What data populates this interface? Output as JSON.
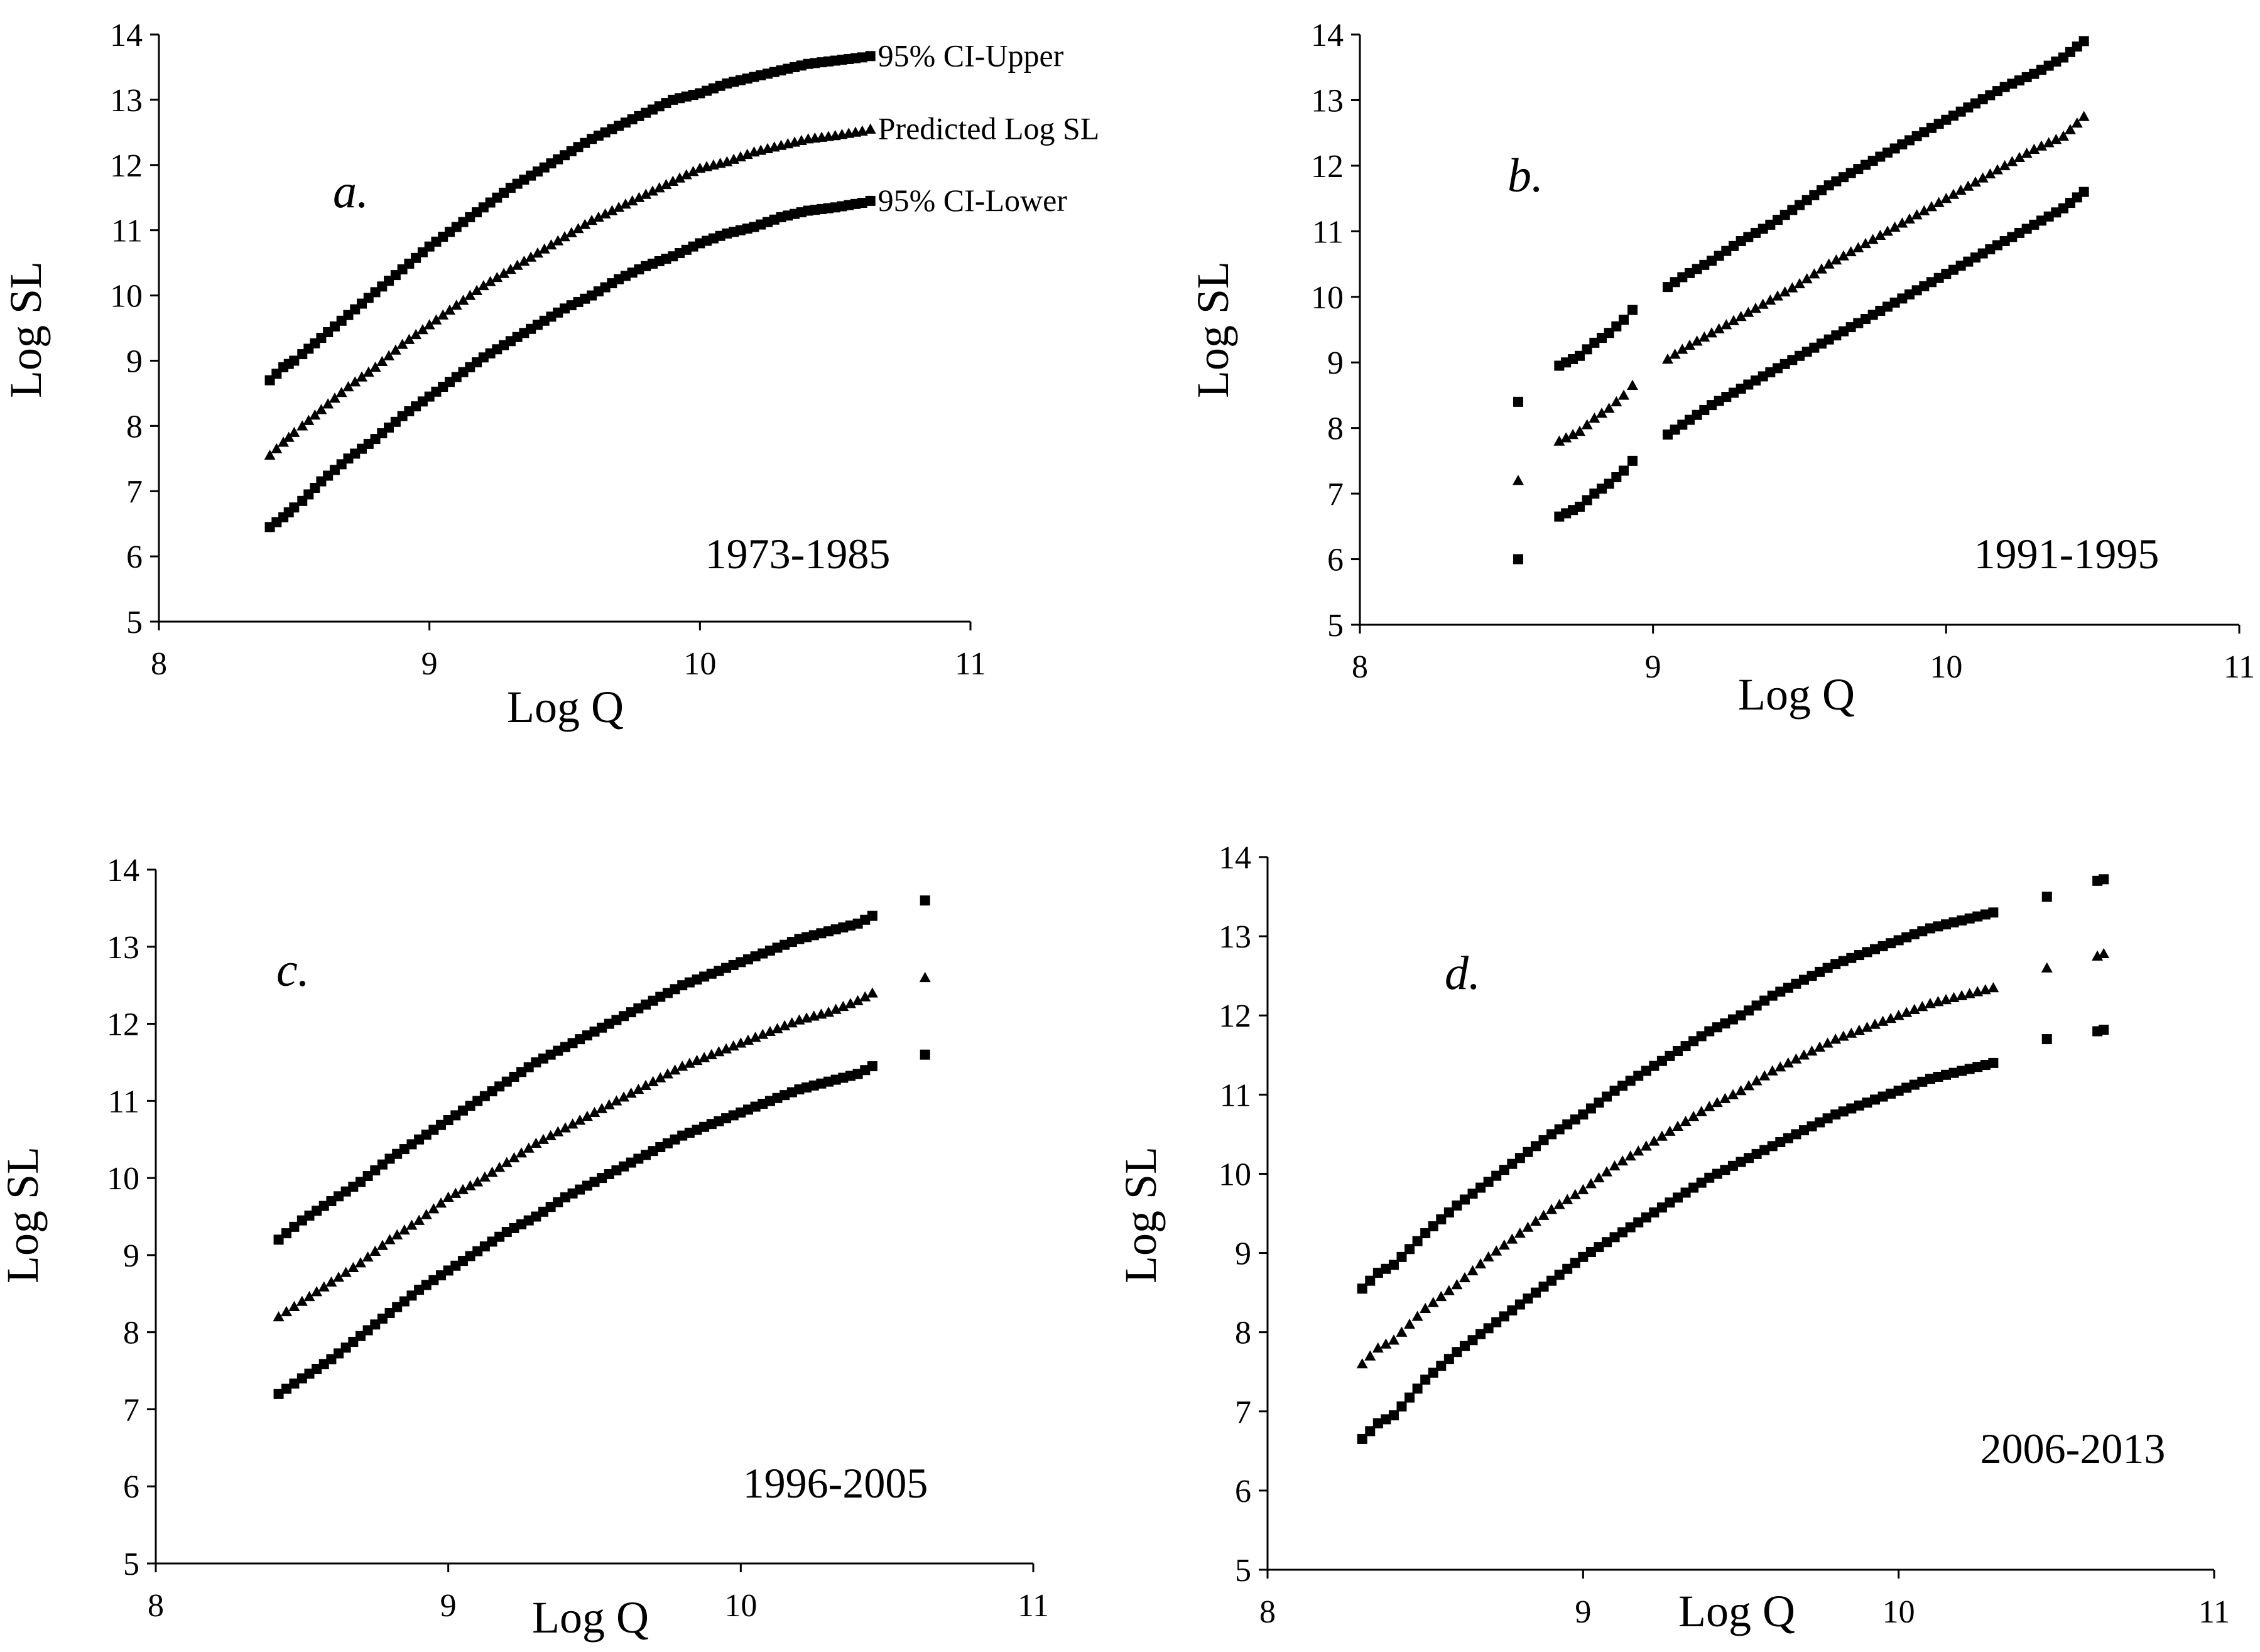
{
  "figure": {
    "background": "#ffffff",
    "marker_color": "#000000"
  },
  "chart_data": [
    {
      "type": "scatter",
      "panel": "a.",
      "period": "1973-1985",
      "xlabel": "Log Q",
      "ylabel": "Log SL",
      "xlim": [
        8,
        11
      ],
      "ylim": [
        5,
        14
      ],
      "xticks": [
        8,
        9,
        10,
        11
      ],
      "yticks": [
        5,
        6,
        7,
        8,
        9,
        10,
        11,
        12,
        13,
        14
      ],
      "legend": [
        {
          "series": "95% CI-Upper",
          "label": "95% CI-Upper"
        },
        {
          "series": "Predicted Log SL",
          "label": "Predicted Log SL"
        },
        {
          "series": "95% CI-Lower",
          "label": "95% CI-Lower"
        }
      ],
      "series": [
        {
          "name": "95% CI-Upper",
          "marker": "square",
          "x": [
            8.41,
            8.46,
            8.5,
            8.53,
            8.6,
            8.7,
            8.8,
            8.9,
            9.0,
            9.1,
            9.2,
            9.3,
            9.4,
            9.5,
            9.6,
            9.7,
            9.8,
            9.9,
            10.0,
            10.1,
            10.2,
            10.3,
            10.4,
            10.5,
            10.6,
            10.63
          ],
          "y": [
            8.7,
            8.9,
            9.0,
            9.1,
            9.35,
            9.7,
            10.05,
            10.4,
            10.75,
            11.05,
            11.35,
            11.65,
            11.9,
            12.15,
            12.4,
            12.6,
            12.8,
            13.0,
            13.1,
            13.25,
            13.35,
            13.45,
            13.55,
            13.6,
            13.65,
            13.67
          ]
        },
        {
          "name": "Predicted Log SL",
          "marker": "triangle",
          "x": [
            8.41,
            8.46,
            8.5,
            8.53,
            8.6,
            8.7,
            8.8,
            8.9,
            9.0,
            9.1,
            9.2,
            9.3,
            9.4,
            9.5,
            9.6,
            9.7,
            9.8,
            9.9,
            10.0,
            10.1,
            10.2,
            10.3,
            10.4,
            10.5,
            10.6,
            10.63
          ],
          "y": [
            7.55,
            7.75,
            7.9,
            8.0,
            8.25,
            8.6,
            8.9,
            9.25,
            9.55,
            9.85,
            10.15,
            10.4,
            10.65,
            10.9,
            11.15,
            11.35,
            11.55,
            11.75,
            11.95,
            12.05,
            12.2,
            12.3,
            12.4,
            12.45,
            12.52,
            12.55
          ]
        },
        {
          "name": "95% CI-Lower",
          "marker": "square",
          "x": [
            8.41,
            8.46,
            8.5,
            8.53,
            8.6,
            8.7,
            8.8,
            8.9,
            9.0,
            9.1,
            9.2,
            9.3,
            9.4,
            9.5,
            9.6,
            9.7,
            9.8,
            9.9,
            10.0,
            10.1,
            10.2,
            10.3,
            10.4,
            10.5,
            10.6,
            10.63
          ],
          "y": [
            6.45,
            6.6,
            6.75,
            6.85,
            7.15,
            7.5,
            7.8,
            8.15,
            8.45,
            8.75,
            9.05,
            9.3,
            9.55,
            9.8,
            10.0,
            10.25,
            10.45,
            10.6,
            10.8,
            10.95,
            11.05,
            11.2,
            11.3,
            11.35,
            11.42,
            11.45
          ]
        }
      ]
    },
    {
      "type": "scatter",
      "panel": "b.",
      "period": "1991-1995",
      "xlabel": "Log Q",
      "ylabel": "Log SL",
      "xlim": [
        8,
        11
      ],
      "ylim": [
        5,
        14
      ],
      "xticks": [
        8,
        9,
        10,
        11
      ],
      "yticks": [
        5,
        6,
        7,
        8,
        9,
        10,
        11,
        12,
        13,
        14
      ],
      "series": [
        {
          "name": "95% CI-Upper",
          "marker": "square",
          "x": [
            8.54,
            8.68,
            8.75,
            8.8,
            8.85,
            8.9,
            8.93,
            9.05,
            9.1,
            9.2,
            9.3,
            9.4,
            9.5,
            9.6,
            9.7,
            9.8,
            9.9,
            10.0,
            10.1,
            10.2,
            10.3,
            10.4,
            10.47
          ],
          "y": [
            8.4,
            8.95,
            9.1,
            9.3,
            9.45,
            9.65,
            9.8,
            10.15,
            10.3,
            10.55,
            10.85,
            11.1,
            11.4,
            11.7,
            11.95,
            12.2,
            12.45,
            12.7,
            12.95,
            13.2,
            13.4,
            13.65,
            13.9
          ]
        },
        {
          "name": "Predicted Log SL",
          "marker": "triangle",
          "x": [
            8.54,
            8.68,
            8.75,
            8.8,
            8.85,
            8.9,
            8.93,
            9.05,
            9.1,
            9.2,
            9.3,
            9.4,
            9.5,
            9.6,
            9.7,
            9.8,
            9.9,
            10.0,
            10.1,
            10.2,
            10.3,
            10.4,
            10.47
          ],
          "y": [
            7.2,
            7.8,
            7.95,
            8.15,
            8.3,
            8.5,
            8.65,
            9.05,
            9.2,
            9.45,
            9.7,
            9.95,
            10.2,
            10.5,
            10.75,
            11.0,
            11.25,
            11.5,
            11.75,
            12.0,
            12.25,
            12.45,
            12.75
          ]
        },
        {
          "name": "95% CI-Lower",
          "marker": "square",
          "x": [
            8.54,
            8.68,
            8.75,
            8.8,
            8.85,
            8.9,
            8.93,
            9.05,
            9.1,
            9.2,
            9.3,
            9.4,
            9.5,
            9.6,
            9.7,
            9.8,
            9.9,
            10.0,
            10.1,
            10.2,
            10.3,
            10.4,
            10.47
          ],
          "y": [
            6.0,
            6.65,
            6.8,
            7.0,
            7.15,
            7.35,
            7.5,
            7.9,
            8.05,
            8.35,
            8.6,
            8.85,
            9.1,
            9.35,
            9.6,
            9.85,
            10.1,
            10.35,
            10.6,
            10.85,
            11.1,
            11.35,
            11.6
          ]
        }
      ]
    },
    {
      "type": "scatter",
      "panel": "c.",
      "period": "1996-2005",
      "xlabel": "Log Q",
      "ylabel": "Log SL",
      "xlim": [
        8,
        11
      ],
      "ylim": [
        5,
        14
      ],
      "xticks": [
        8,
        9,
        10,
        11
      ],
      "yticks": [
        5,
        6,
        7,
        8,
        9,
        10,
        11,
        12,
        13,
        14
      ],
      "series": [
        {
          "name": "95% CI-Upper",
          "marker": "square",
          "x": [
            8.42,
            8.5,
            8.6,
            8.7,
            8.8,
            8.9,
            9.0,
            9.1,
            9.2,
            9.3,
            9.4,
            9.5,
            9.6,
            9.7,
            9.8,
            9.9,
            10.0,
            10.1,
            10.2,
            10.3,
            10.4,
            10.45,
            10.63
          ],
          "y": [
            9.2,
            9.45,
            9.7,
            9.95,
            10.25,
            10.5,
            10.75,
            11.0,
            11.25,
            11.5,
            11.7,
            11.9,
            12.1,
            12.3,
            12.5,
            12.65,
            12.8,
            12.95,
            13.1,
            13.2,
            13.3,
            13.4,
            13.6
          ]
        },
        {
          "name": "Predicted Log SL",
          "marker": "triangle",
          "x": [
            8.42,
            8.5,
            8.6,
            8.7,
            8.8,
            8.9,
            9.0,
            9.1,
            9.2,
            9.3,
            9.4,
            9.5,
            9.6,
            9.7,
            9.8,
            9.9,
            10.0,
            10.1,
            10.2,
            10.3,
            10.4,
            10.45,
            10.63
          ],
          "y": [
            8.2,
            8.4,
            8.65,
            8.9,
            9.2,
            9.45,
            9.75,
            9.95,
            10.2,
            10.45,
            10.65,
            10.85,
            11.05,
            11.25,
            11.45,
            11.6,
            11.75,
            11.9,
            12.05,
            12.15,
            12.3,
            12.4,
            12.6
          ]
        },
        {
          "name": "95% CI-Lower",
          "marker": "square",
          "x": [
            8.42,
            8.5,
            8.6,
            8.7,
            8.8,
            8.9,
            9.0,
            9.1,
            9.2,
            9.3,
            9.4,
            9.5,
            9.6,
            9.7,
            9.8,
            9.9,
            10.0,
            10.1,
            10.2,
            10.3,
            10.4,
            10.45,
            10.63
          ],
          "y": [
            7.2,
            7.4,
            7.65,
            7.95,
            8.25,
            8.55,
            8.8,
            9.05,
            9.3,
            9.5,
            9.75,
            9.95,
            10.15,
            10.35,
            10.55,
            10.7,
            10.85,
            11.0,
            11.15,
            11.25,
            11.35,
            11.45,
            11.6
          ]
        }
      ]
    },
    {
      "type": "scatter",
      "panel": "d.",
      "period": "2006-2013",
      "xlabel": "Log Q",
      "ylabel": "Log SL",
      "xlim": [
        8,
        11
      ],
      "ylim": [
        5,
        14
      ],
      "xticks": [
        8,
        9,
        10,
        11
      ],
      "yticks": [
        5,
        6,
        7,
        8,
        9,
        10,
        11,
        12,
        13,
        14
      ],
      "series": [
        {
          "name": "95% CI-Upper",
          "marker": "square",
          "x": [
            8.3,
            8.35,
            8.4,
            8.5,
            8.6,
            8.7,
            8.8,
            8.9,
            9.0,
            9.1,
            9.2,
            9.3,
            9.4,
            9.5,
            9.6,
            9.7,
            9.8,
            9.9,
            10.0,
            10.1,
            10.2,
            10.3,
            10.47,
            10.63,
            10.65
          ],
          "y": [
            8.55,
            8.75,
            8.85,
            9.25,
            9.6,
            9.9,
            10.2,
            10.5,
            10.75,
            11.05,
            11.3,
            11.55,
            11.8,
            12.0,
            12.25,
            12.45,
            12.65,
            12.8,
            12.95,
            13.1,
            13.2,
            13.3,
            13.5,
            13.7,
            13.72
          ]
        },
        {
          "name": "Predicted Log SL",
          "marker": "triangle",
          "x": [
            8.3,
            8.35,
            8.4,
            8.5,
            8.6,
            8.7,
            8.8,
            8.9,
            9.0,
            9.1,
            9.2,
            9.3,
            9.4,
            9.5,
            9.6,
            9.7,
            9.8,
            9.9,
            10.0,
            10.1,
            10.2,
            10.3,
            10.47,
            10.63,
            10.65
          ],
          "y": [
            7.6,
            7.8,
            7.9,
            8.3,
            8.6,
            8.95,
            9.25,
            9.55,
            9.8,
            10.1,
            10.35,
            10.6,
            10.85,
            11.05,
            11.3,
            11.5,
            11.7,
            11.85,
            12.0,
            12.15,
            12.25,
            12.35,
            12.6,
            12.75,
            12.78
          ]
        },
        {
          "name": "95% CI-Lower",
          "marker": "square",
          "x": [
            8.3,
            8.35,
            8.4,
            8.5,
            8.6,
            8.7,
            8.8,
            8.9,
            9.0,
            9.1,
            9.2,
            9.3,
            9.4,
            9.5,
            9.6,
            9.7,
            9.8,
            9.9,
            10.0,
            10.1,
            10.2,
            10.3,
            10.47,
            10.63,
            10.65
          ],
          "y": [
            6.65,
            6.85,
            6.95,
            7.4,
            7.75,
            8.05,
            8.35,
            8.65,
            8.95,
            9.2,
            9.45,
            9.7,
            9.95,
            10.15,
            10.35,
            10.55,
            10.75,
            10.9,
            11.05,
            11.2,
            11.3,
            11.4,
            11.7,
            11.8,
            11.82
          ]
        }
      ]
    }
  ]
}
